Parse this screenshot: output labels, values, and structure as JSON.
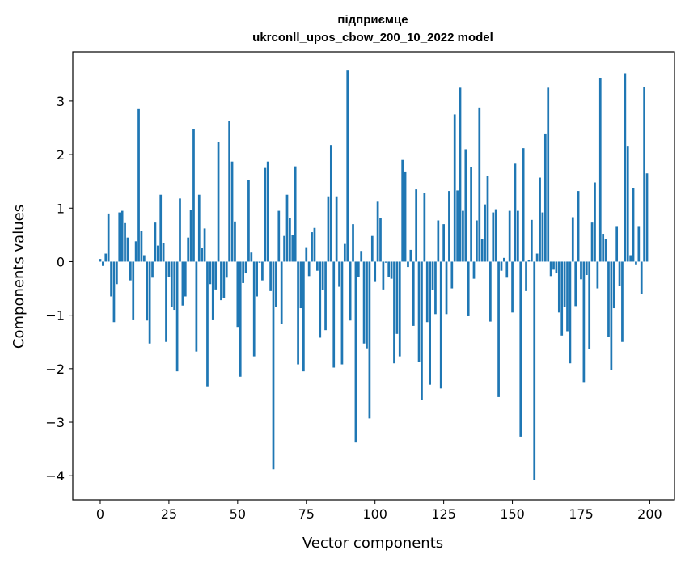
{
  "chart_data": {
    "type": "bar",
    "title_line1": "підприємце",
    "title_line2": "ukrconll_upos_cbow_200_10_2022 model",
    "xlabel": "Vector components",
    "ylabel": "Components values",
    "xlim": [
      -10,
      209
    ],
    "ylim": [
      -4.45,
      3.92
    ],
    "xticks": [
      0,
      25,
      50,
      75,
      100,
      125,
      150,
      175,
      200
    ],
    "xtick_labels": [
      "0",
      "25",
      "50",
      "75",
      "100",
      "125",
      "150",
      "175",
      "200"
    ],
    "yticks": [
      -4,
      -3,
      -2,
      -1,
      0,
      1,
      2,
      3
    ],
    "ytick_labels": [
      "−4",
      "−3",
      "−2",
      "−1",
      "0",
      "1",
      "2",
      "3"
    ],
    "bar_color": "#1f77b4",
    "grid": false,
    "legend": "none",
    "x": [
      0,
      1,
      2,
      3,
      4,
      5,
      6,
      7,
      8,
      9,
      10,
      11,
      12,
      13,
      14,
      15,
      16,
      17,
      18,
      19,
      20,
      21,
      22,
      23,
      24,
      25,
      26,
      27,
      28,
      29,
      30,
      31,
      32,
      33,
      34,
      35,
      36,
      37,
      38,
      39,
      40,
      41,
      42,
      43,
      44,
      45,
      46,
      47,
      48,
      49,
      50,
      51,
      52,
      53,
      54,
      55,
      56,
      57,
      58,
      59,
      60,
      61,
      62,
      63,
      64,
      65,
      66,
      67,
      68,
      69,
      70,
      71,
      72,
      73,
      74,
      75,
      76,
      77,
      78,
      79,
      80,
      81,
      82,
      83,
      84,
      85,
      86,
      87,
      88,
      89,
      90,
      91,
      92,
      93,
      94,
      95,
      96,
      97,
      98,
      99,
      100,
      101,
      102,
      103,
      104,
      105,
      106,
      107,
      108,
      109,
      110,
      111,
      112,
      113,
      114,
      115,
      116,
      117,
      118,
      119,
      120,
      121,
      122,
      123,
      124,
      125,
      126,
      127,
      128,
      129,
      130,
      131,
      132,
      133,
      134,
      135,
      136,
      137,
      138,
      139,
      140,
      141,
      142,
      143,
      144,
      145,
      146,
      147,
      148,
      149,
      150,
      151,
      152,
      153,
      154,
      155,
      156,
      157,
      158,
      159,
      160,
      161,
      162,
      163,
      164,
      165,
      166,
      167,
      168,
      169,
      170,
      171,
      172,
      173,
      174,
      175,
      176,
      177,
      178,
      179,
      180,
      181,
      182,
      183,
      184,
      185,
      186,
      187,
      188,
      189,
      190,
      191,
      192,
      193,
      194,
      195,
      196,
      197,
      198,
      199
    ],
    "values": [
      0.05,
      -0.08,
      0.15,
      0.9,
      -0.65,
      -1.13,
      -0.42,
      0.92,
      0.95,
      0.72,
      0.45,
      -0.35,
      -1.08,
      0.38,
      2.85,
      0.58,
      0.12,
      -1.1,
      -1.53,
      -0.3,
      0.73,
      0.3,
      1.25,
      0.35,
      -1.5,
      -0.28,
      -0.85,
      -0.9,
      -2.05,
      1.18,
      -0.82,
      -0.65,
      0.45,
      0.97,
      2.48,
      -1.68,
      1.25,
      0.25,
      0.62,
      -2.33,
      -0.42,
      -1.08,
      -0.52,
      2.23,
      -0.72,
      -0.68,
      -0.3,
      2.63,
      1.87,
      0.75,
      -1.22,
      -2.15,
      -0.4,
      -0.22,
      1.52,
      0.17,
      -1.77,
      -0.65,
      -0.02,
      -0.35,
      1.75,
      1.87,
      -0.55,
      -3.88,
      -0.85,
      0.95,
      -1.17,
      0.48,
      1.25,
      0.82,
      0.5,
      1.78,
      -1.92,
      -0.87,
      -2.05,
      0.27,
      -0.27,
      0.55,
      0.63,
      -0.17,
      -1.42,
      -0.53,
      -1.28,
      1.22,
      2.18,
      -1.98,
      1.22,
      -0.47,
      -1.92,
      0.33,
      3.57,
      -1.1,
      0.7,
      -3.38,
      -0.28,
      0.2,
      -1.53,
      -1.62,
      -2.93,
      0.48,
      -0.38,
      1.12,
      0.82,
      -0.52,
      -0.02,
      -0.28,
      -0.32,
      -1.9,
      -1.35,
      -1.77,
      1.9,
      1.67,
      -0.1,
      0.22,
      -1.2,
      1.35,
      -1.87,
      -2.58,
      1.28,
      -1.13,
      -2.3,
      -0.53,
      -0.98,
      0.77,
      -2.37,
      0.7,
      -0.98,
      1.32,
      -0.5,
      2.75,
      1.33,
      3.25,
      0.95,
      2.1,
      -1.02,
      1.77,
      -0.32,
      0.77,
      2.88,
      0.42,
      1.07,
      1.6,
      -1.12,
      0.92,
      0.98,
      -2.53,
      -0.17,
      0.07,
      -0.3,
      0.95,
      -0.95,
      1.83,
      0.95,
      -3.27,
      2.12,
      -0.55,
      0.03,
      0.78,
      -4.08,
      0.15,
      1.57,
      0.92,
      2.38,
      3.25,
      -0.27,
      -0.15,
      -0.22,
      -0.95,
      -1.38,
      -0.85,
      -1.3,
      -1.9,
      0.83,
      -0.83,
      1.32,
      -0.33,
      -2.25,
      -0.25,
      -1.63,
      0.73,
      1.48,
      -0.5,
      3.43,
      0.52,
      0.43,
      -1.4,
      -2.03,
      -0.87,
      0.65,
      -0.45,
      -1.5,
      3.52,
      2.15,
      0.12,
      1.37,
      -0.05,
      0.65,
      -0.6,
      3.26,
      1.65
    ]
  }
}
